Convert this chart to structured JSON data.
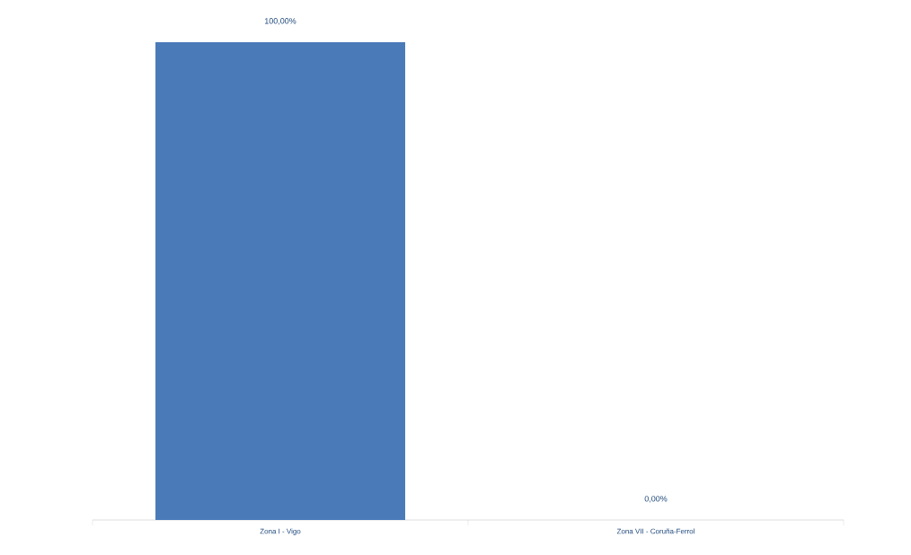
{
  "chart_data": {
    "type": "bar",
    "categories": [
      "Zona I - Vigo",
      "Zona VII - Coruña-Ferrol"
    ],
    "values": [
      100,
      0
    ],
    "value_labels": [
      "100,00%",
      "0,00%"
    ],
    "color": "#4a7ab8"
  }
}
